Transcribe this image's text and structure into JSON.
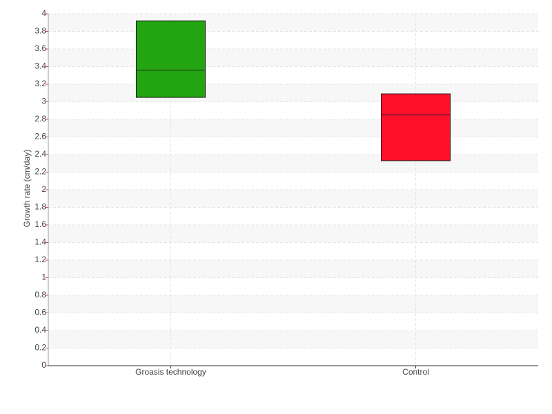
{
  "chart_data": {
    "type": "box",
    "y_label": "Growth rate (cm/day)",
    "categories": [
      "Groasis technology",
      "Control"
    ],
    "q1": [
      3.05,
      2.33
    ],
    "median": [
      3.36,
      2.85
    ],
    "q3": [
      3.92,
      3.09
    ],
    "colors": [
      "#22a510",
      "#ff0f2a"
    ],
    "ylim": [
      0,
      4
    ],
    "yticks": [
      0,
      0.2,
      0.4,
      0.6,
      0.8,
      1,
      1.2,
      1.4,
      1.6,
      1.8,
      2,
      2.2,
      2.4,
      2.6,
      2.8,
      3,
      3.2,
      3.4,
      3.6,
      3.8,
      4
    ],
    "grid": true
  }
}
